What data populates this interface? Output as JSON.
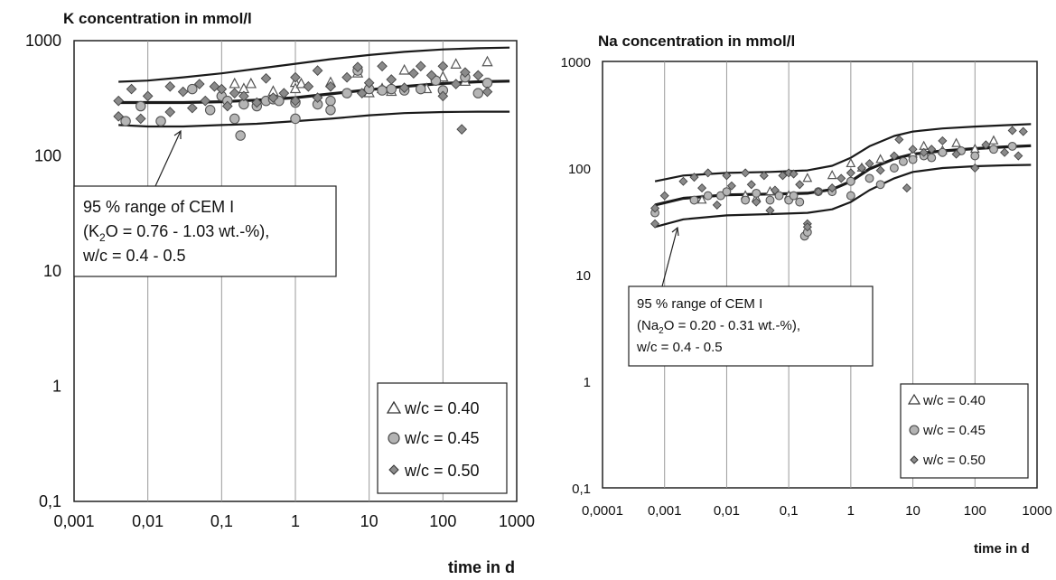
{
  "chart_data": [
    {
      "type": "scatter",
      "title": "K concentration in mmol/l",
      "xlabel": "time in d",
      "ylabel": "",
      "x_scale": "log",
      "y_scale": "log",
      "xlim": [
        0.001,
        1000
      ],
      "ylim": [
        0.1,
        1000
      ],
      "x_ticks": [
        "0,001",
        "0,01",
        "0,1",
        "1",
        "10",
        "100",
        "1000"
      ],
      "y_ticks": [
        "0,1",
        "1",
        "10",
        "100",
        "1000"
      ],
      "grid": "vertical",
      "annotation": {
        "line1": "95 % range of CEM I",
        "line2_pre": "(K",
        "line2_sub": "2",
        "line2_post": "O = 0.76 - 1.03 wt.-%),",
        "line3": "w/c = 0.4 - 0.5"
      },
      "legend": {
        "placement": "bottom-right",
        "entries": [
          "w/c = 0.40",
          "w/c = 0.45",
          "w/c = 0.50"
        ]
      },
      "band": {
        "x": [
          0.004,
          0.01,
          0.03,
          0.1,
          0.3,
          1,
          3,
          10,
          30,
          100,
          300,
          800
        ],
        "upper": [
          440,
          450,
          480,
          520,
          570,
          630,
          690,
          750,
          800,
          840,
          860,
          870
        ],
        "median": [
          290,
          290,
          290,
          295,
          305,
          320,
          345,
          375,
          400,
          425,
          440,
          445
        ],
        "lower": [
          185,
          180,
          180,
          185,
          190,
          200,
          210,
          225,
          235,
          240,
          242,
          242
        ]
      },
      "series": [
        {
          "name": "w/c = 0.40",
          "marker": "triangle",
          "points": [
            [
              0.15,
              420
            ],
            [
              0.2,
              380
            ],
            [
              0.25,
              420
            ],
            [
              0.5,
              360
            ],
            [
              1,
              430
            ],
            [
              1,
              380
            ],
            [
              1.2,
              420
            ],
            [
              3,
              430
            ],
            [
              7,
              520
            ],
            [
              10,
              350
            ],
            [
              15,
              380
            ],
            [
              20,
              360
            ],
            [
              30,
              550
            ],
            [
              60,
              380
            ],
            [
              100,
              480
            ],
            [
              150,
              620
            ],
            [
              400,
              650
            ],
            [
              200,
              440
            ]
          ]
        },
        {
          "name": "w/c = 0.45",
          "marker": "circle",
          "points": [
            [
              0.005,
              200
            ],
            [
              0.008,
              270
            ],
            [
              0.015,
              200
            ],
            [
              0.04,
              380
            ],
            [
              0.07,
              250
            ],
            [
              0.1,
              330
            ],
            [
              0.12,
              300
            ],
            [
              0.15,
              210
            ],
            [
              0.18,
              150
            ],
            [
              0.2,
              280
            ],
            [
              0.3,
              270
            ],
            [
              0.4,
              300
            ],
            [
              0.5,
              310
            ],
            [
              0.6,
              300
            ],
            [
              1,
              290
            ],
            [
              1,
              210
            ],
            [
              2,
              280
            ],
            [
              3,
              300
            ],
            [
              3,
              250
            ],
            [
              5,
              350
            ],
            [
              7,
              550
            ],
            [
              10,
              380
            ],
            [
              15,
              370
            ],
            [
              20,
              380
            ],
            [
              30,
              370
            ],
            [
              50,
              380
            ],
            [
              80,
              450
            ],
            [
              100,
              370
            ],
            [
              200,
              480
            ],
            [
              300,
              350
            ],
            [
              400,
              430
            ]
          ]
        },
        {
          "name": "w/c = 0.50",
          "marker": "diamond",
          "points": [
            [
              0.004,
              220
            ],
            [
              0.004,
              300
            ],
            [
              0.006,
              380
            ],
            [
              0.008,
              210
            ],
            [
              0.01,
              330
            ],
            [
              0.02,
              400
            ],
            [
              0.02,
              240
            ],
            [
              0.03,
              360
            ],
            [
              0.04,
              260
            ],
            [
              0.05,
              420
            ],
            [
              0.06,
              300
            ],
            [
              0.08,
              400
            ],
            [
              0.1,
              380
            ],
            [
              0.12,
              270
            ],
            [
              0.15,
              350
            ],
            [
              0.2,
              330
            ],
            [
              0.3,
              290
            ],
            [
              0.4,
              470
            ],
            [
              0.5,
              320
            ],
            [
              0.7,
              350
            ],
            [
              1,
              480
            ],
            [
              1,
              300
            ],
            [
              1.5,
              400
            ],
            [
              2,
              550
            ],
            [
              2,
              320
            ],
            [
              3,
              400
            ],
            [
              5,
              480
            ],
            [
              7,
              590
            ],
            [
              8,
              350
            ],
            [
              10,
              430
            ],
            [
              15,
              600
            ],
            [
              20,
              460
            ],
            [
              30,
              390
            ],
            [
              40,
              520
            ],
            [
              50,
              600
            ],
            [
              70,
              500
            ],
            [
              100,
              600
            ],
            [
              100,
              330
            ],
            [
              150,
              420
            ],
            [
              180,
              170
            ],
            [
              200,
              530
            ],
            [
              300,
              500
            ],
            [
              400,
              360
            ]
          ]
        }
      ]
    },
    {
      "type": "scatter",
      "title": "Na concentration in mmol/l",
      "xlabel": "time in d",
      "ylabel": "",
      "x_scale": "log",
      "y_scale": "log",
      "xlim": [
        0.0001,
        1000
      ],
      "ylim": [
        0.1,
        1000
      ],
      "x_ticks": [
        "0,0001",
        "0,001",
        "0,01",
        "0,1",
        "1",
        "10",
        "100",
        "1000"
      ],
      "y_ticks": [
        "0,1",
        "1",
        "10",
        "100",
        "1000"
      ],
      "grid": "vertical",
      "annotation": {
        "line1": "95 % range of CEM I",
        "line2_pre": "(Na",
        "line2_sub": "2",
        "line2_post": "O = 0.20 - 0.31 wt.-%),",
        "line3": "w/c = 0.4 - 0.5"
      },
      "legend": {
        "placement": "bottom-right",
        "entries": [
          "w/c = 0.40",
          "w/c = 0.45",
          "w/c = 0.50"
        ]
      },
      "band": {
        "x": [
          0.0007,
          0.002,
          0.01,
          0.05,
          0.2,
          0.5,
          1,
          2,
          5,
          10,
          30,
          100,
          300,
          800
        ],
        "upper": [
          75,
          85,
          90,
          92,
          95,
          105,
          125,
          160,
          200,
          220,
          235,
          245,
          252,
          258
        ],
        "median": [
          45,
          52,
          56,
          57,
          58,
          63,
          75,
          98,
          122,
          135,
          145,
          152,
          158,
          162
        ],
        "lower": [
          28,
          33,
          36,
          37,
          38,
          41,
          48,
          62,
          80,
          92,
          100,
          104,
          106,
          107
        ]
      },
      "series": [
        {
          "name": "w/c = 0.40",
          "marker": "triangle",
          "points": [
            [
              0.004,
              50
            ],
            [
              0.02,
              55
            ],
            [
              0.03,
              52
            ],
            [
              0.05,
              60
            ],
            [
              0.1,
              55
            ],
            [
              0.2,
              80
            ],
            [
              0.5,
              85
            ],
            [
              1,
              110
            ],
            [
              1.5,
              100
            ],
            [
              3,
              120
            ],
            [
              10,
              135
            ],
            [
              15,
              160
            ],
            [
              30,
              145
            ],
            [
              50,
              170
            ],
            [
              100,
              150
            ],
            [
              200,
              180
            ]
          ]
        },
        {
          "name": "w/c = 0.45",
          "marker": "circle",
          "points": [
            [
              0.0007,
              38
            ],
            [
              0.003,
              50
            ],
            [
              0.005,
              55
            ],
            [
              0.008,
              55
            ],
            [
              0.01,
              60
            ],
            [
              0.02,
              50
            ],
            [
              0.03,
              58
            ],
            [
              0.05,
              50
            ],
            [
              0.07,
              55
            ],
            [
              0.1,
              50
            ],
            [
              0.12,
              55
            ],
            [
              0.15,
              48
            ],
            [
              0.18,
              23
            ],
            [
              0.2,
              25
            ],
            [
              0.3,
              60
            ],
            [
              0.5,
              60
            ],
            [
              1,
              55
            ],
            [
              1,
              75
            ],
            [
              2,
              80
            ],
            [
              3,
              70
            ],
            [
              5,
              100
            ],
            [
              7,
              115
            ],
            [
              10,
              120
            ],
            [
              15,
              130
            ],
            [
              20,
              125
            ],
            [
              30,
              140
            ],
            [
              60,
              145
            ],
            [
              100,
              130
            ],
            [
              200,
              150
            ],
            [
              400,
              160
            ]
          ]
        },
        {
          "name": "w/c = 0.50",
          "marker": "diamond",
          "points": [
            [
              0.0007,
              30
            ],
            [
              0.0007,
              42
            ],
            [
              0.001,
              55
            ],
            [
              0.002,
              75
            ],
            [
              0.003,
              82
            ],
            [
              0.004,
              65
            ],
            [
              0.005,
              90
            ],
            [
              0.007,
              45
            ],
            [
              0.01,
              85
            ],
            [
              0.012,
              68
            ],
            [
              0.02,
              90
            ],
            [
              0.025,
              70
            ],
            [
              0.03,
              48
            ],
            [
              0.04,
              85
            ],
            [
              0.05,
              40
            ],
            [
              0.06,
              62
            ],
            [
              0.08,
              85
            ],
            [
              0.1,
              90
            ],
            [
              0.12,
              88
            ],
            [
              0.15,
              70
            ],
            [
              0.2,
              30
            ],
            [
              0.2,
              28
            ],
            [
              0.3,
              60
            ],
            [
              0.5,
              65
            ],
            [
              0.7,
              80
            ],
            [
              1,
              90
            ],
            [
              1.5,
              100
            ],
            [
              2,
              110
            ],
            [
              3,
              95
            ],
            [
              5,
              130
            ],
            [
              6,
              185
            ],
            [
              8,
              65
            ],
            [
              10,
              150
            ],
            [
              15,
              140
            ],
            [
              20,
              150
            ],
            [
              30,
              180
            ],
            [
              50,
              135
            ],
            [
              100,
              100
            ],
            [
              150,
              165
            ],
            [
              300,
              140
            ],
            [
              400,
              225
            ],
            [
              500,
              130
            ],
            [
              600,
              220
            ]
          ]
        }
      ]
    }
  ]
}
